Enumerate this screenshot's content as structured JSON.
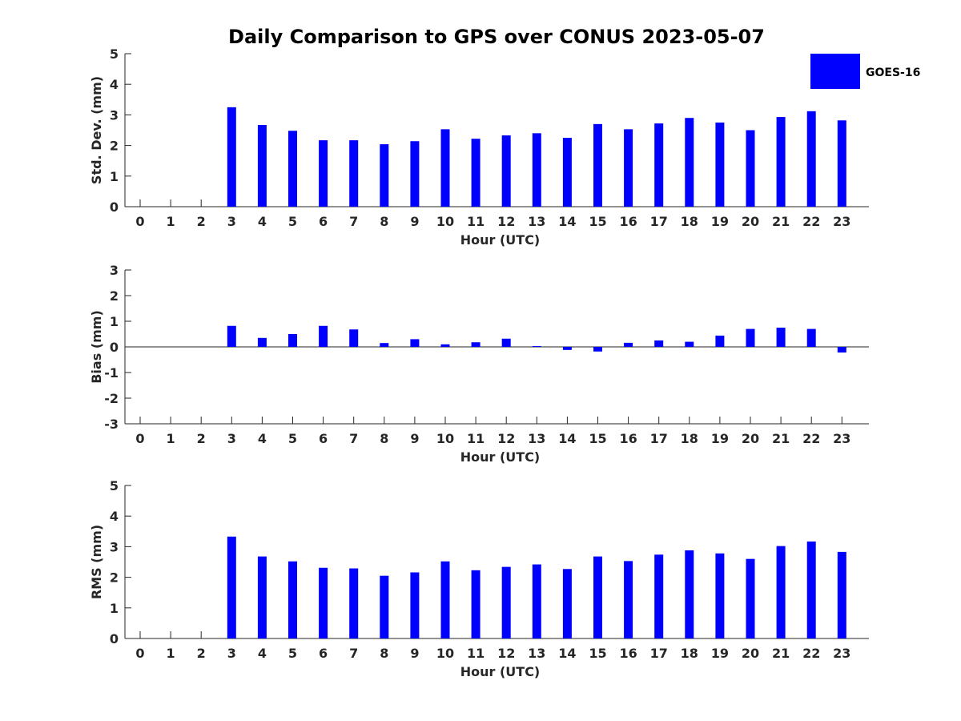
{
  "chart_data": {
    "title": "Daily Comparison to GPS over CONUS 2023-05-07",
    "legend": {
      "entries": [
        "GOES-16"
      ],
      "position": "top-right",
      "color": "#0000ff"
    },
    "bar_color": "#0000ff",
    "panels": [
      {
        "type": "bar",
        "ylabel": "Std. Dev. (mm)",
        "xlabel": "Hour (UTC)",
        "ylim": [
          0,
          5
        ],
        "yticks": [
          0,
          1,
          2,
          3,
          4,
          5
        ],
        "categories": [
          0,
          1,
          2,
          3,
          4,
          5,
          6,
          7,
          8,
          9,
          10,
          11,
          12,
          13,
          14,
          15,
          16,
          17,
          18,
          19,
          20,
          21,
          22,
          23
        ],
        "values": [
          null,
          null,
          null,
          3.25,
          2.67,
          2.48,
          2.17,
          2.17,
          2.04,
          2.14,
          2.53,
          2.22,
          2.33,
          2.4,
          2.25,
          2.7,
          2.53,
          2.72,
          2.9,
          2.75,
          2.5,
          2.93,
          3.12,
          2.82
        ]
      },
      {
        "type": "bar",
        "ylabel": "Bias (mm)",
        "xlabel": "Hour (UTC)",
        "ylim": [
          -3,
          3
        ],
        "yticks": [
          -3,
          -2,
          -1,
          0,
          1,
          2,
          3
        ],
        "categories": [
          0,
          1,
          2,
          3,
          4,
          5,
          6,
          7,
          8,
          9,
          10,
          11,
          12,
          13,
          14,
          15,
          16,
          17,
          18,
          19,
          20,
          21,
          22,
          23
        ],
        "values": [
          null,
          null,
          null,
          0.82,
          0.35,
          0.5,
          0.82,
          0.68,
          0.15,
          0.3,
          0.1,
          0.18,
          0.32,
          0.03,
          -0.12,
          -0.18,
          0.16,
          0.25,
          0.2,
          0.44,
          0.7,
          0.75,
          0.7,
          -0.22
        ]
      },
      {
        "type": "bar",
        "ylabel": "RMS (mm)",
        "xlabel": "Hour (UTC)",
        "ylim": [
          0,
          5
        ],
        "yticks": [
          0,
          1,
          2,
          3,
          4,
          5
        ],
        "categories": [
          0,
          1,
          2,
          3,
          4,
          5,
          6,
          7,
          8,
          9,
          10,
          11,
          12,
          13,
          14,
          15,
          16,
          17,
          18,
          19,
          20,
          21,
          22,
          23
        ],
        "values": [
          null,
          null,
          null,
          3.33,
          2.68,
          2.52,
          2.31,
          2.29,
          2.05,
          2.16,
          2.52,
          2.23,
          2.34,
          2.42,
          2.27,
          2.68,
          2.53,
          2.74,
          2.88,
          2.78,
          2.6,
          3.02,
          3.17,
          2.83
        ]
      }
    ]
  }
}
